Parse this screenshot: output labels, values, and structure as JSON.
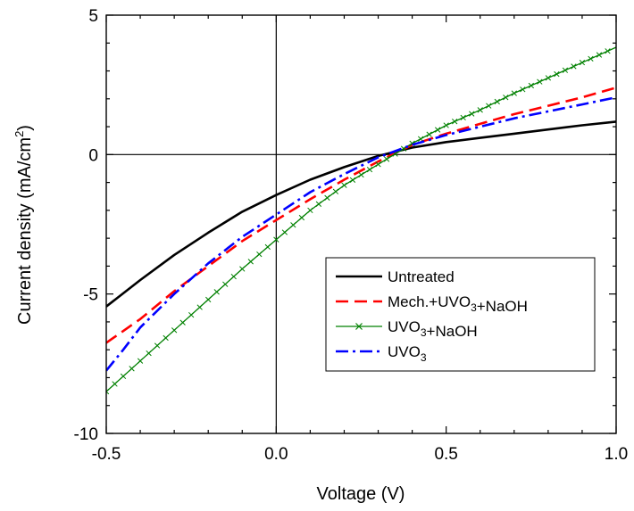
{
  "chart_data": {
    "type": "line",
    "xlabel": "Voltage (V)",
    "ylabel": {
      "main": "Current density (mA/cm",
      "sup": "2",
      "close": ")"
    },
    "xlim": [
      -0.5,
      1.0
    ],
    "ylim": [
      -10,
      5
    ],
    "xticks": [
      {
        "value": -0.5,
        "label": "-0.5"
      },
      {
        "value": 0.0,
        "label": "0.0"
      },
      {
        "value": 0.5,
        "label": "0.5"
      },
      {
        "value": 1.0,
        "label": "1.0"
      }
    ],
    "yticks": [
      {
        "value": 5,
        "label": "5"
      },
      {
        "value": 0,
        "label": "0"
      },
      {
        "value": -5,
        "label": "-5"
      },
      {
        "value": -10,
        "label": "-10"
      }
    ],
    "zero_lines": true,
    "grid": false,
    "legend_position": "lower-right",
    "series": [
      {
        "name": "Untreated",
        "color": "#000000",
        "style": "solid",
        "x": [
          -0.5,
          -0.4,
          -0.3,
          -0.2,
          -0.1,
          0.0,
          0.1,
          0.2,
          0.3,
          0.4,
          0.5,
          0.6,
          0.7,
          0.8,
          0.9,
          1.0
        ],
        "y": [
          -5.45,
          -4.5,
          -3.6,
          -2.8,
          -2.05,
          -1.45,
          -0.9,
          -0.45,
          -0.05,
          0.25,
          0.45,
          0.6,
          0.75,
          0.9,
          1.05,
          1.18
        ]
      },
      {
        "name": "Mech.+UVO3+NaOH",
        "label_parts": [
          {
            "t": "Mech.+UVO"
          },
          {
            "t": "3",
            "sub": true
          },
          {
            "t": "+NaOH"
          }
        ],
        "color": "#ff0000",
        "style": "dashed",
        "x": [
          -0.5,
          -0.4,
          -0.3,
          -0.2,
          -0.1,
          0.0,
          0.1,
          0.2,
          0.3,
          0.4,
          0.5,
          0.6,
          0.7,
          0.8,
          0.9,
          1.0
        ],
        "y": [
          -6.75,
          -5.9,
          -4.9,
          -4.0,
          -3.1,
          -2.35,
          -1.6,
          -0.9,
          -0.25,
          0.35,
          0.75,
          1.1,
          1.45,
          1.75,
          2.05,
          2.4
        ]
      },
      {
        "name": "UVO3+NaOH",
        "label_parts": [
          {
            "t": "UVO"
          },
          {
            "t": "3",
            "sub": true
          },
          {
            "t": "+NaOH"
          }
        ],
        "color": "#008000",
        "style": "cross",
        "x": [
          -0.5,
          -0.4,
          -0.3,
          -0.2,
          -0.1,
          0.0,
          0.1,
          0.2,
          0.3,
          0.4,
          0.5,
          0.6,
          0.7,
          0.8,
          0.9,
          1.0
        ],
        "y": [
          -8.5,
          -7.4,
          -6.3,
          -5.2,
          -4.1,
          -3.05,
          -2.0,
          -1.1,
          -0.35,
          0.4,
          1.05,
          1.6,
          2.2,
          2.75,
          3.3,
          3.85
        ]
      },
      {
        "name": "UVO3",
        "label_parts": [
          {
            "t": "UVO"
          },
          {
            "t": "3",
            "sub": true
          }
        ],
        "color": "#0000ff",
        "style": "dashdot",
        "x": [
          -0.5,
          -0.45,
          -0.4,
          -0.3,
          -0.2,
          -0.1,
          0.0,
          0.1,
          0.2,
          0.3,
          0.4,
          0.5,
          0.6,
          0.7,
          0.8,
          0.9,
          1.0
        ],
        "y": [
          -7.75,
          -7.0,
          -6.2,
          -5.0,
          -3.9,
          -2.95,
          -2.15,
          -1.35,
          -0.7,
          -0.1,
          0.35,
          0.7,
          1.0,
          1.3,
          1.55,
          1.8,
          2.05
        ]
      }
    ]
  }
}
